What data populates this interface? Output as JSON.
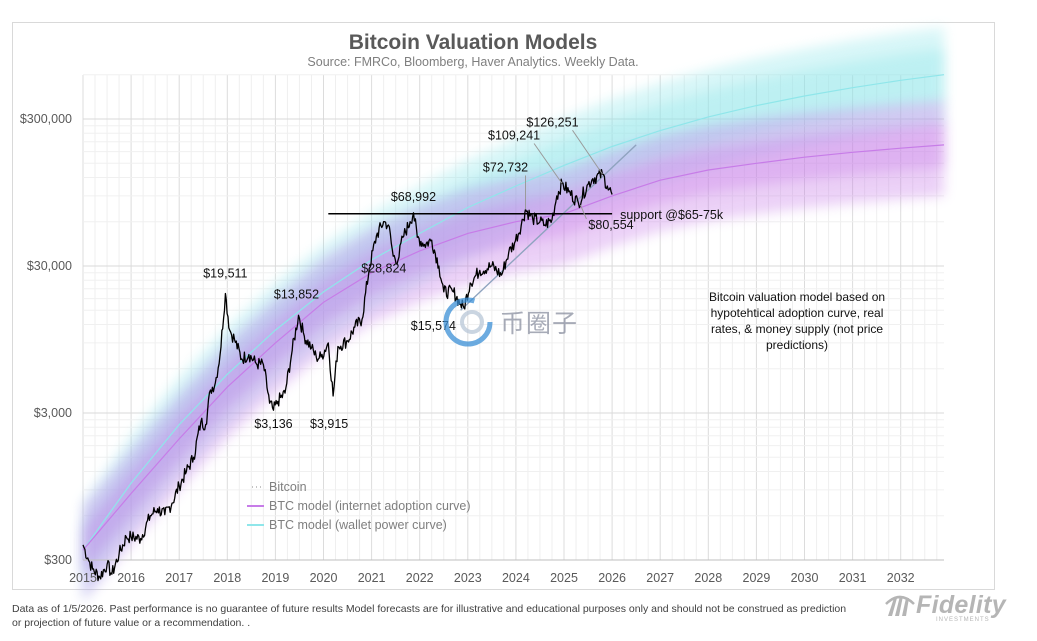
{
  "chart_data": {
    "type": "line",
    "title": "Bitcoin Valuation Models",
    "subtitle": "Source: FMRCo, Bloomberg, Haver Analytics. Weekly Data.",
    "yscale": "log",
    "ylim": [
      300,
      700000
    ],
    "xlim": [
      2015,
      2032.9
    ],
    "y_ticks": [
      {
        "value": 300,
        "label": "$300"
      },
      {
        "value": 3000,
        "label": "$3,000"
      },
      {
        "value": 30000,
        "label": "$30,000"
      },
      {
        "value": 300000,
        "label": "$300,000"
      }
    ],
    "x_ticks": [
      {
        "value": 2015,
        "label": "2015"
      },
      {
        "value": 2016,
        "label": "2016"
      },
      {
        "value": 2017,
        "label": "2017"
      },
      {
        "value": 2018,
        "label": "2018"
      },
      {
        "value": 2019,
        "label": "2019"
      },
      {
        "value": 2020,
        "label": "2020"
      },
      {
        "value": 2021,
        "label": "2021"
      },
      {
        "value": 2022,
        "label": "2022"
      },
      {
        "value": 2023,
        "label": "2023"
      },
      {
        "value": 2024,
        "label": "2024"
      },
      {
        "value": 2025,
        "label": "2025"
      },
      {
        "value": 2026,
        "label": "2026"
      },
      {
        "value": 2027,
        "label": "2027"
      },
      {
        "value": 2028,
        "label": "2028"
      },
      {
        "value": 2029,
        "label": "2029"
      },
      {
        "value": 2030,
        "label": "2030"
      },
      {
        "value": 2031,
        "label": "2031"
      },
      {
        "value": 2032,
        "label": "2032"
      }
    ],
    "series": [
      {
        "name": "Bitcoin",
        "color": "#000000",
        "points": [
          [
            2015.0,
            380
          ],
          [
            2015.1,
            310
          ],
          [
            2015.2,
            260
          ],
          [
            2015.35,
            230
          ],
          [
            2015.5,
            280
          ],
          [
            2015.6,
            240
          ],
          [
            2015.75,
            330
          ],
          [
            2015.9,
            430
          ],
          [
            2016.0,
            430
          ],
          [
            2016.2,
            420
          ],
          [
            2016.4,
            600
          ],
          [
            2016.55,
            670
          ],
          [
            2016.7,
            610
          ],
          [
            2016.85,
            730
          ],
          [
            2017.0,
            960
          ],
          [
            2017.15,
            1200
          ],
          [
            2017.3,
            1500
          ],
          [
            2017.45,
            2600
          ],
          [
            2017.55,
            2500
          ],
          [
            2017.65,
            4300
          ],
          [
            2017.75,
            4800
          ],
          [
            2017.85,
            7500
          ],
          [
            2017.96,
            19511
          ],
          [
            2018.05,
            11000
          ],
          [
            2018.15,
            9500
          ],
          [
            2018.3,
            7000
          ],
          [
            2018.45,
            7500
          ],
          [
            2018.6,
            6500
          ],
          [
            2018.75,
            6400
          ],
          [
            2018.88,
            3500
          ],
          [
            2018.96,
            3136
          ],
          [
            2019.05,
            3600
          ],
          [
            2019.2,
            4100
          ],
          [
            2019.35,
            8000
          ],
          [
            2019.48,
            13852
          ],
          [
            2019.6,
            10000
          ],
          [
            2019.75,
            8300
          ],
          [
            2019.85,
            7200
          ],
          [
            2019.95,
            7200
          ],
          [
            2020.1,
            9000
          ],
          [
            2020.2,
            3915
          ],
          [
            2020.3,
            8500
          ],
          [
            2020.5,
            9300
          ],
          [
            2020.65,
            11500
          ],
          [
            2020.8,
            13000
          ],
          [
            2020.95,
            28824
          ],
          [
            2021.1,
            48000
          ],
          [
            2021.25,
            60000
          ],
          [
            2021.35,
            57000
          ],
          [
            2021.45,
            35000
          ],
          [
            2021.55,
            33000
          ],
          [
            2021.65,
            47000
          ],
          [
            2021.8,
            60000
          ],
          [
            2021.87,
            68992
          ],
          [
            2021.95,
            47000
          ],
          [
            2022.1,
            42000
          ],
          [
            2022.25,
            45000
          ],
          [
            2022.4,
            30000
          ],
          [
            2022.5,
            20000
          ],
          [
            2022.7,
            20000
          ],
          [
            2022.85,
            16500
          ],
          [
            2022.92,
            15574
          ],
          [
            2023.05,
            23000
          ],
          [
            2023.25,
            28000
          ],
          [
            2023.5,
            30000
          ],
          [
            2023.7,
            26000
          ],
          [
            2023.85,
            37000
          ],
          [
            2023.97,
            43000
          ],
          [
            2024.15,
            62000
          ],
          [
            2024.2,
            72732
          ],
          [
            2024.35,
            63000
          ],
          [
            2024.5,
            60000
          ],
          [
            2024.6,
            57000
          ],
          [
            2024.75,
            62000
          ],
          [
            2024.85,
            90000
          ],
          [
            2024.96,
            109241
          ],
          [
            2025.1,
            96000
          ],
          [
            2025.3,
            80554
          ],
          [
            2025.5,
            108000
          ],
          [
            2025.6,
            118000
          ],
          [
            2025.8,
            126251
          ],
          [
            2025.9,
            105000
          ],
          [
            2026.0,
            92000
          ]
        ]
      },
      {
        "name": "BTC model (internet adoption curve)",
        "color": "#c77ce8",
        "points": [
          [
            2015.0,
            350
          ],
          [
            2016.0,
            850
          ],
          [
            2017.0,
            2000
          ],
          [
            2018.0,
            4500
          ],
          [
            2019.0,
            9000
          ],
          [
            2020.0,
            17000
          ],
          [
            2021.0,
            27000
          ],
          [
            2022.0,
            38000
          ],
          [
            2023.0,
            50000
          ],
          [
            2024.0,
            60000
          ],
          [
            2025.0,
            68000
          ],
          [
            2026.0,
            90000
          ],
          [
            2027.0,
            115000
          ],
          [
            2028.0,
            135000
          ],
          [
            2029.0,
            150000
          ],
          [
            2030.0,
            165000
          ],
          [
            2031.0,
            178000
          ],
          [
            2032.0,
            190000
          ],
          [
            2032.9,
            200000
          ]
        ]
      },
      {
        "name": "BTC model (wallet power curve)",
        "color": "#8fe6ea",
        "points": [
          [
            2015.0,
            350
          ],
          [
            2016.0,
            1000
          ],
          [
            2017.0,
            2500
          ],
          [
            2018.0,
            5500
          ],
          [
            2019.0,
            11000
          ],
          [
            2020.0,
            20000
          ],
          [
            2021.0,
            33000
          ],
          [
            2022.0,
            50000
          ],
          [
            2023.0,
            75000
          ],
          [
            2024.0,
            105000
          ],
          [
            2025.0,
            145000
          ],
          [
            2026.0,
            195000
          ],
          [
            2027.0,
            250000
          ],
          [
            2028.0,
            310000
          ],
          [
            2029.0,
            370000
          ],
          [
            2030.0,
            430000
          ],
          [
            2031.0,
            490000
          ],
          [
            2032.0,
            550000
          ],
          [
            2032.9,
            600000
          ]
        ]
      }
    ],
    "support_line": {
      "label": "support @$65-75k",
      "value": 68000,
      "x_range": [
        2020.1,
        2026.0
      ]
    },
    "trendline": {
      "x_range": [
        2022.85,
        2026.5
      ],
      "y_range": [
        15000,
        200000
      ]
    },
    "annotations": [
      {
        "label": "$19,511",
        "x": 2017.96,
        "y": 19511
      },
      {
        "label": "$13,852",
        "x": 2019.48,
        "y": 13852
      },
      {
        "label": "$3,136",
        "x": 2018.96,
        "y": 3136
      },
      {
        "label": "$3,915",
        "x": 2020.2,
        "y": 3915
      },
      {
        "label": "$28,824",
        "x": 2020.95,
        "y": 28824
      },
      {
        "label": "$68,992",
        "x": 2021.87,
        "y": 68992
      },
      {
        "label": "$15,574",
        "x": 2022.92,
        "y": 15574
      },
      {
        "label": "$72,732",
        "x": 2024.2,
        "y": 72732
      },
      {
        "label": "$109,241",
        "x": 2024.96,
        "y": 109241
      },
      {
        "label": "$126,251",
        "x": 2025.8,
        "y": 126251
      },
      {
        "label": "$80,554",
        "x": 2025.3,
        "y": 80554
      }
    ],
    "note": "Bitcoin valuation model based on hypotehtical adoption curve, real rates, & money supply (not price predictions)",
    "note_lines": [
      "Bitcoin valuation model based on",
      "hypotehtical adoption curve, real",
      "rates, & money supply (not price",
      "predictions)"
    ],
    "legend": {
      "position": "bottom-left",
      "items": [
        "Bitcoin",
        "BTC model (internet adoption curve)",
        "BTC model (wallet power curve)"
      ]
    }
  },
  "footnote": "Data as of 1/5/2026. Past performance is no guarantee of future results Model forecasts are for illustrative and educational purposes only and should not be construed as prediction or projection of future value or a recommendation. .",
  "brand": {
    "name": "Fidelity",
    "sub": "INVESTMENTS"
  },
  "watermark": {
    "text": "币圈子"
  }
}
